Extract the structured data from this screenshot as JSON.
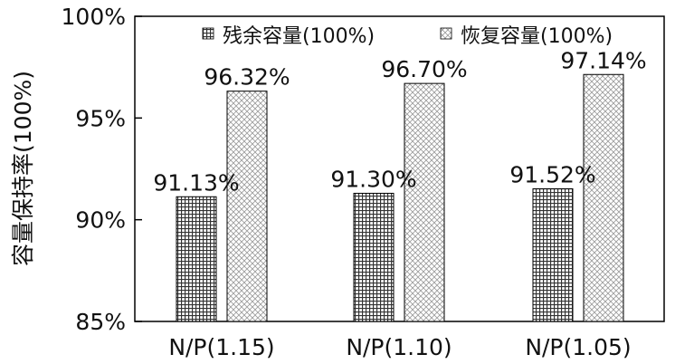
{
  "chart_data": {
    "type": "bar",
    "title": "",
    "xlabel": "",
    "ylabel": "容量保持率(100%)",
    "ylim": [
      85,
      100
    ],
    "yticks": [
      "85%",
      "90%",
      "95%",
      "100%"
    ],
    "ytick_values": [
      85,
      90,
      95,
      100
    ],
    "grid": false,
    "legend_position": "top-right",
    "categories": [
      "N/P(1.15)",
      "N/P(1.10)",
      "N/P(1.05)"
    ],
    "series": [
      {
        "name": "残余容量(100%)",
        "values": [
          91.13,
          91.3,
          91.52
        ],
        "value_labels": [
          "91.13%",
          "91.30%",
          "91.52%"
        ],
        "pattern": "grid-dark"
      },
      {
        "name": "恢复容量(100%)",
        "values": [
          96.32,
          96.7,
          97.14
        ],
        "value_labels": [
          "96.32%",
          "96.70%",
          "97.14%"
        ],
        "pattern": "crosshatch-light"
      }
    ]
  }
}
